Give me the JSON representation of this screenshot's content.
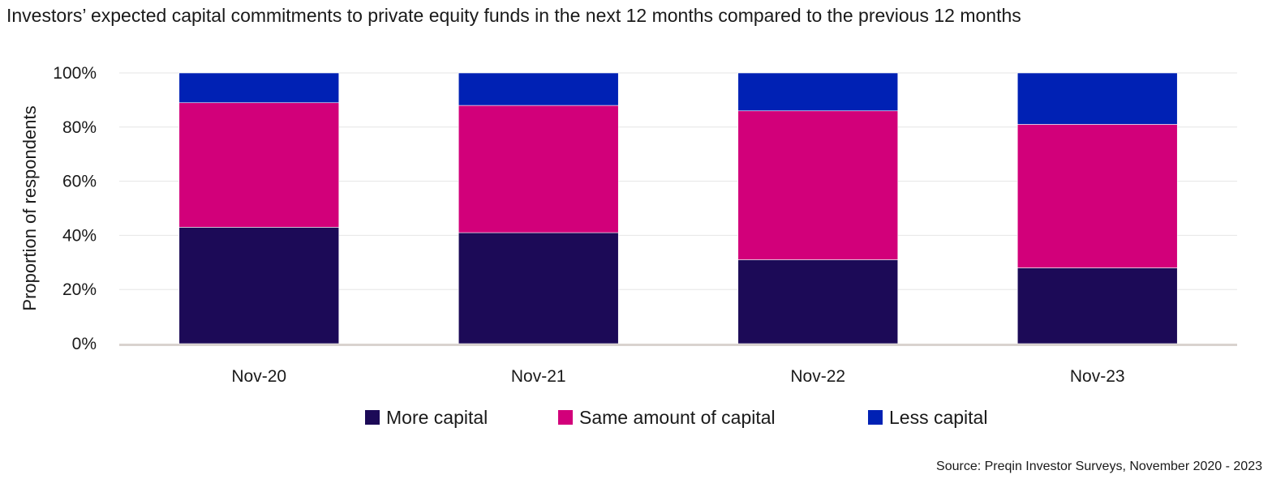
{
  "chart_data": {
    "type": "bar",
    "stacked": true,
    "title": "Investors’ expected capital commitments to private equity funds in the next 12 months compared to the previous 12 months",
    "xlabel": "",
    "ylabel": "Proportion of respondents",
    "ylim": [
      0,
      100
    ],
    "yticks": [
      "0%",
      "20%",
      "40%",
      "60%",
      "80%",
      "100%"
    ],
    "ytick_values": [
      0,
      20,
      40,
      60,
      80,
      100
    ],
    "categories": [
      "Nov-20",
      "Nov-21",
      "Nov-22",
      "Nov-23"
    ],
    "series": [
      {
        "name": "More capital",
        "color": "#1c0a57",
        "values": [
          43,
          41,
          31,
          28
        ]
      },
      {
        "name": "Same amount of capital",
        "color": "#d2007a",
        "values": [
          46,
          47,
          55,
          53
        ]
      },
      {
        "name": "Less capital",
        "color": "#0021b4",
        "values": [
          11,
          12,
          14,
          19
        ]
      }
    ],
    "grid": true,
    "legend_position": "bottom-center"
  },
  "source": "Source: Preqin Investor Surveys, November 2020 - 2023"
}
